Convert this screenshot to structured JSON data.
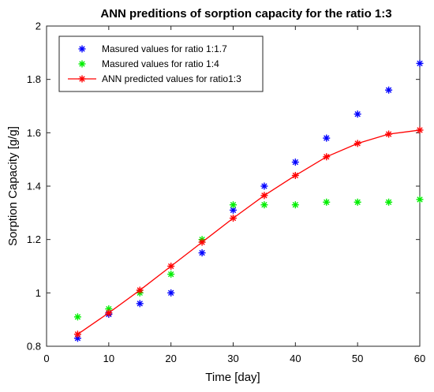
{
  "chart_data": {
    "type": "scatter",
    "title": "ANN preditions of sorption capacity for the ratio 1:3",
    "xlabel": "Time [day]",
    "ylabel": "Sorption Capacity [g/g]",
    "xlim": [
      0,
      60
    ],
    "ylim": [
      0.8,
      2.0
    ],
    "xticks": [
      0,
      10,
      20,
      30,
      40,
      50,
      60
    ],
    "yticks": [
      0.8,
      1.0,
      1.2,
      1.4,
      1.6,
      1.8,
      2.0
    ],
    "xtick_labels": [
      "0",
      "10",
      "20",
      "30",
      "40",
      "50",
      "60"
    ],
    "ytick_labels": [
      "0.8",
      "1",
      "1.2",
      "1.4",
      "1.6",
      "1.8",
      "2"
    ],
    "grid": false,
    "legend_position": "top-left",
    "series": [
      {
        "name": "Masured values for ratio 1:1.7",
        "type": "scatter",
        "marker": "asterisk",
        "color": "#0000ff",
        "x": [
          5,
          10,
          15,
          20,
          25,
          30,
          35,
          40,
          45,
          50,
          55,
          60
        ],
        "y": [
          0.83,
          0.92,
          0.96,
          1.0,
          1.15,
          1.31,
          1.4,
          1.49,
          1.58,
          1.67,
          1.76,
          1.86
        ]
      },
      {
        "name": "Masured values for ratio 1:4",
        "type": "scatter",
        "marker": "asterisk",
        "color": "#00ee00",
        "x": [
          5,
          10,
          15,
          20,
          25,
          30,
          35,
          40,
          45,
          50,
          55,
          60
        ],
        "y": [
          0.91,
          0.94,
          1.0,
          1.07,
          1.2,
          1.33,
          1.33,
          1.33,
          1.34,
          1.34,
          1.34,
          1.35
        ]
      },
      {
        "name": "ANN predicted values for ratio1:3",
        "type": "line",
        "marker": "asterisk",
        "color": "#ff0000",
        "x": [
          5,
          10,
          15,
          20,
          25,
          30,
          35,
          40,
          45,
          50,
          55,
          60
        ],
        "y": [
          0.845,
          0.925,
          1.01,
          1.1,
          1.19,
          1.28,
          1.365,
          1.44,
          1.51,
          1.56,
          1.595,
          1.61
        ]
      }
    ]
  }
}
